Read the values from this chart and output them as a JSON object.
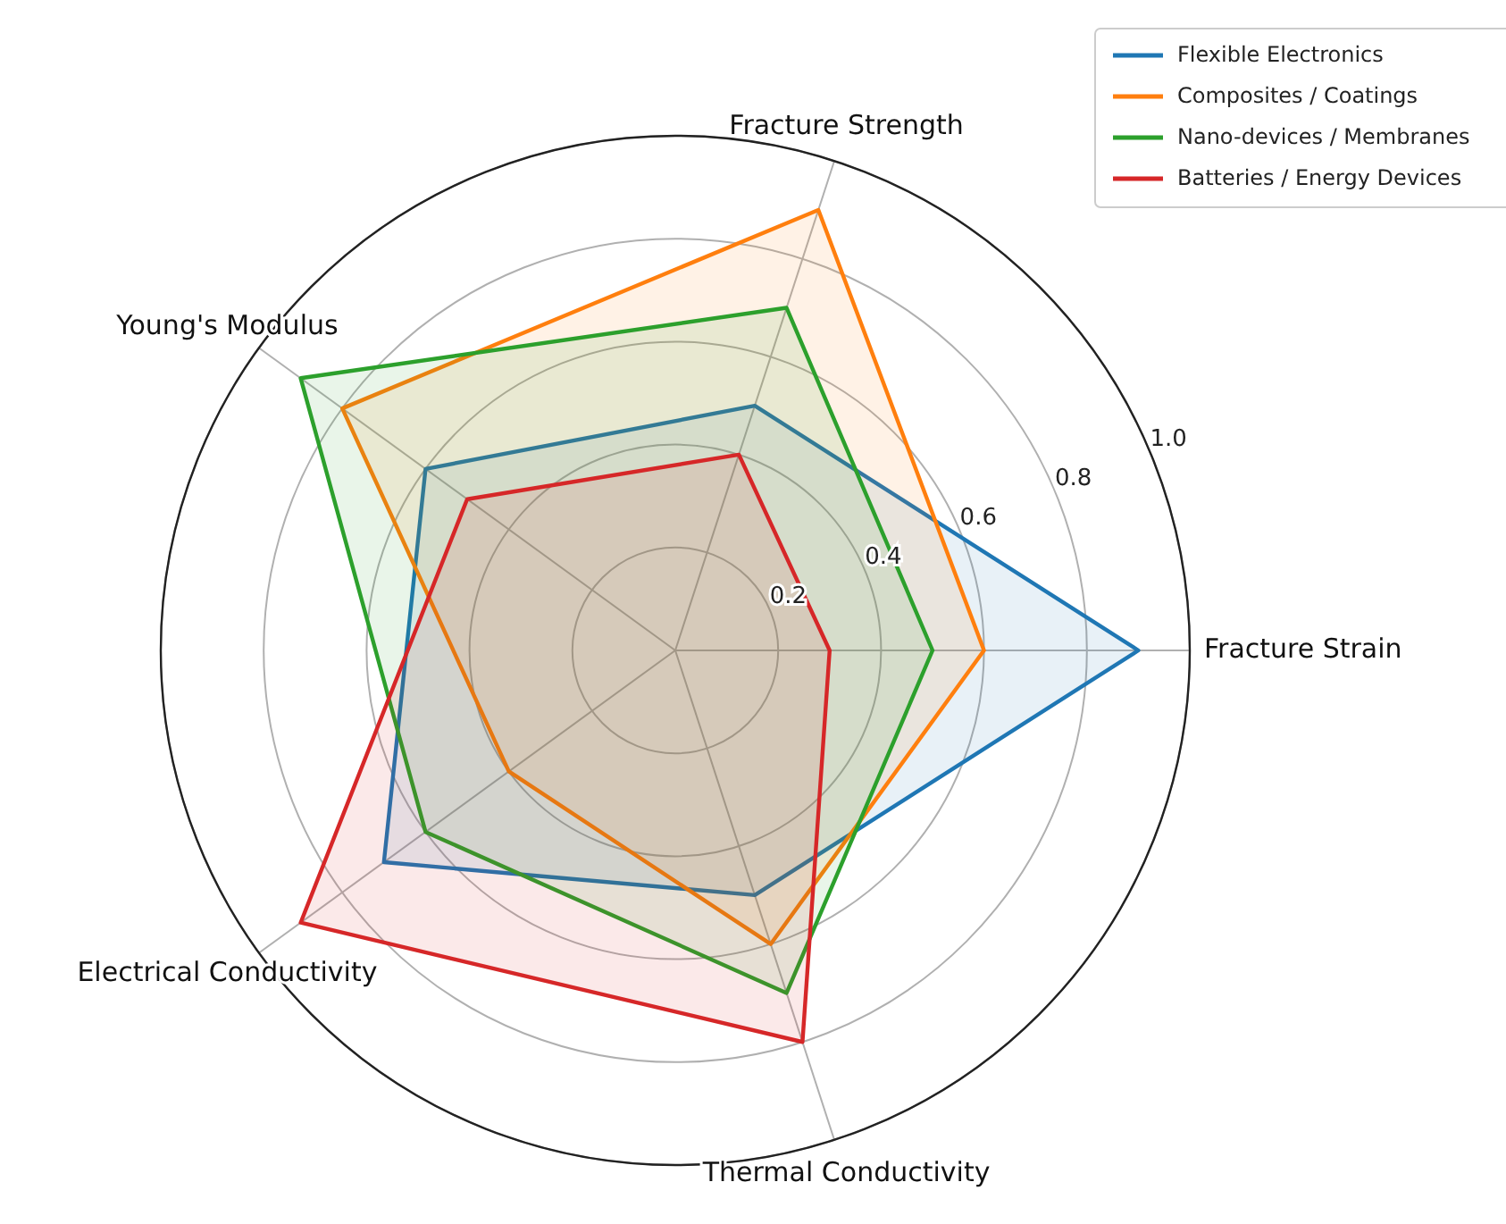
{
  "chart_data": {
    "type": "radar",
    "categories": [
      "Fracture Strength",
      "Fracture Strain",
      "Thermal Conductivity",
      "Electrical Conductivity",
      "Young's Modulus"
    ],
    "series": [
      {
        "name": "Flexible Electronics",
        "color": "#1f77b4",
        "values": [
          0.5,
          0.9,
          0.5,
          0.7,
          0.6
        ]
      },
      {
        "name": "Composites / Coatings",
        "color": "#ff7f0e",
        "values": [
          0.9,
          0.6,
          0.6,
          0.4,
          0.8
        ]
      },
      {
        "name": "Nano-devices / Membranes",
        "color": "#2ca02c",
        "values": [
          0.7,
          0.5,
          0.7,
          0.6,
          0.9
        ]
      },
      {
        "name": "Batteries / Energy Devices",
        "color": "#d62728",
        "values": [
          0.4,
          0.3,
          0.8,
          0.9,
          0.5
        ]
      }
    ],
    "ylim": [
      0,
      1
    ],
    "yticks": [
      0.2,
      0.4,
      0.6,
      {
        "value": 1,
        "label": "1.0"
      },
      0.8
    ],
    "grid": true,
    "legend": "top right"
  }
}
